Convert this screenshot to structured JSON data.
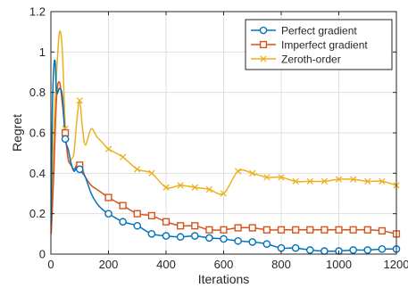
{
  "chart_data": {
    "type": "line",
    "title": "",
    "xlabel": "Iterations",
    "ylabel": "Regret",
    "xlim": [
      0,
      1200
    ],
    "ylim": [
      0,
      1.2
    ],
    "xticks": [
      0,
      200,
      400,
      600,
      800,
      1000,
      1200
    ],
    "yticks": [
      0,
      0.2,
      0.4,
      0.6,
      0.8,
      1,
      1.2
    ],
    "xtick_labels": [
      "0",
      "200",
      "400",
      "600",
      "800",
      "1000",
      "1200"
    ],
    "ytick_labels": [
      "0",
      "0.2",
      "0.4",
      "0.6",
      "0.8",
      "1",
      "1.2"
    ],
    "grid": true,
    "legend_position": "top-right",
    "series": [
      {
        "name": "Perfect gradient",
        "color": "#0072BD",
        "marker": "circle",
        "x": [
          1,
          5,
          10,
          15,
          20,
          30,
          40,
          50,
          60,
          70,
          80,
          90,
          100,
          110,
          120,
          140,
          160,
          180,
          200,
          250,
          300,
          350,
          400,
          450,
          500,
          550,
          600,
          650,
          700,
          750,
          800,
          850,
          900,
          950,
          1000,
          1050,
          1100,
          1150,
          1200
        ],
        "y": [
          0.15,
          0.7,
          0.92,
          0.95,
          0.8,
          0.82,
          0.78,
          0.57,
          0.52,
          0.45,
          0.41,
          0.43,
          0.42,
          0.4,
          0.38,
          0.3,
          0.25,
          0.22,
          0.2,
          0.16,
          0.14,
          0.1,
          0.09,
          0.085,
          0.09,
          0.08,
          0.075,
          0.065,
          0.06,
          0.05,
          0.03,
          0.03,
          0.02,
          0.015,
          0.015,
          0.02,
          0.02,
          0.025,
          0.025
        ]
      },
      {
        "name": "Imperfect gradient",
        "color": "#D95319",
        "marker": "square",
        "x": [
          1,
          5,
          10,
          20,
          30,
          40,
          50,
          60,
          70,
          80,
          90,
          100,
          110,
          120,
          140,
          160,
          180,
          200,
          250,
          300,
          350,
          400,
          450,
          500,
          550,
          600,
          650,
          700,
          750,
          800,
          850,
          900,
          950,
          1000,
          1050,
          1100,
          1150,
          1200
        ],
        "y": [
          0.1,
          0.22,
          0.4,
          0.78,
          0.85,
          0.74,
          0.6,
          0.47,
          0.44,
          0.42,
          0.44,
          0.44,
          0.42,
          0.38,
          0.34,
          0.32,
          0.3,
          0.28,
          0.24,
          0.2,
          0.19,
          0.16,
          0.14,
          0.14,
          0.12,
          0.12,
          0.13,
          0.13,
          0.12,
          0.12,
          0.12,
          0.12,
          0.12,
          0.12,
          0.12,
          0.12,
          0.115,
          0.1
        ]
      },
      {
        "name": "Zeroth-order",
        "color": "#EDB120",
        "marker": "x",
        "x": [
          1,
          5,
          10,
          20,
          30,
          40,
          50,
          60,
          70,
          80,
          90,
          100,
          110,
          120,
          140,
          160,
          180,
          200,
          250,
          300,
          350,
          400,
          450,
          500,
          550,
          600,
          650,
          700,
          750,
          800,
          850,
          900,
          950,
          1000,
          1050,
          1100,
          1150,
          1200
        ],
        "y": [
          0.1,
          0.28,
          0.6,
          0.9,
          1.1,
          1.0,
          0.62,
          0.47,
          0.47,
          0.5,
          0.66,
          0.76,
          0.62,
          0.54,
          0.62,
          0.58,
          0.55,
          0.52,
          0.48,
          0.42,
          0.4,
          0.33,
          0.34,
          0.33,
          0.32,
          0.3,
          0.41,
          0.4,
          0.38,
          0.38,
          0.36,
          0.36,
          0.36,
          0.37,
          0.37,
          0.36,
          0.36,
          0.34
        ]
      }
    ]
  }
}
